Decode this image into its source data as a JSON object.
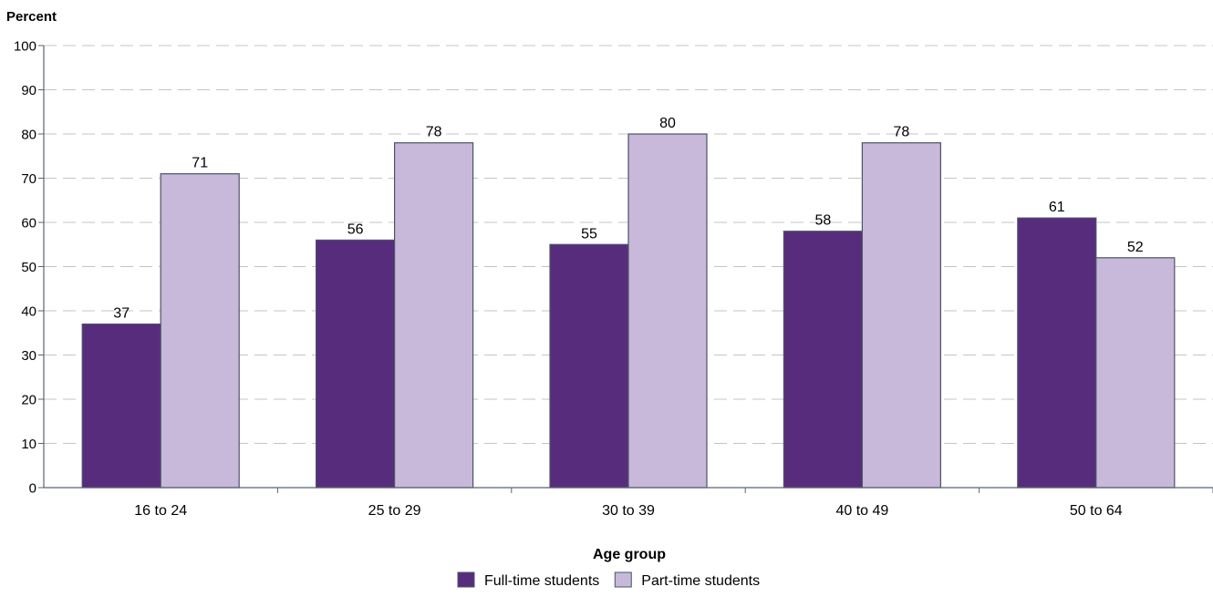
{
  "chart_data": {
    "type": "bar",
    "ylabel": "Percent",
    "xlabel": "Age group",
    "categories": [
      "16 to 24",
      "25 to 29",
      "30 to 39",
      "40 to 49",
      "50 to 64"
    ],
    "series": [
      {
        "name": "Full-time students",
        "color": "#582c7c",
        "values": [
          37,
          56,
          55,
          58,
          61
        ]
      },
      {
        "name": "Part-time students",
        "color": "#c8b8d9",
        "values": [
          71,
          78,
          80,
          78,
          52
        ]
      }
    ],
    "ylim": [
      0,
      100
    ],
    "yticks": [
      0,
      10,
      20,
      30,
      40,
      50,
      60,
      70,
      80,
      90,
      100
    ],
    "grid": "dashed horizontal",
    "legend": "bottom-center"
  }
}
